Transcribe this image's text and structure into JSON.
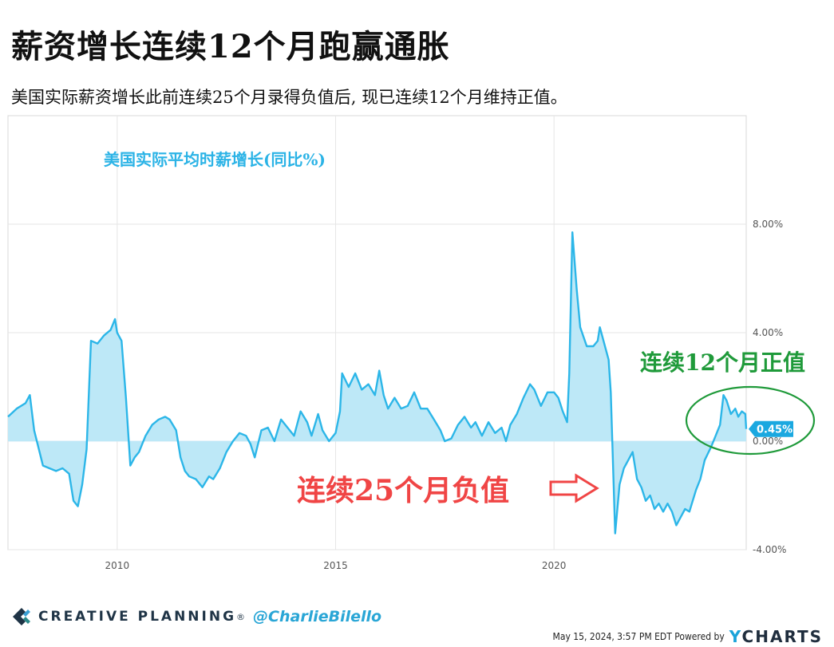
{
  "title": "薪资增长连续12个月跑赢通胀",
  "subtitle": "美国实际薪资增长此前连续25个月录得负值后, 现已连续12个月维持正值。",
  "chart_data": {
    "type": "area",
    "series_label": "美国实际平均时薪增长(同比%)",
    "x_tick_labels": [
      "2010",
      "2015",
      "2020"
    ],
    "y_tick_labels": [
      "8.00%",
      "4.00%",
      "0.00%",
      "-4.00%"
    ],
    "ylim": [
      -4,
      12
    ],
    "xlim": [
      2007.5,
      2024.4
    ],
    "current_value_label": "0.45%",
    "annotation_negative": "连续25个月负值",
    "annotation_positive": "连续12个月正值",
    "points": [
      [
        2007.5,
        0.9
      ],
      [
        2007.7,
        1.2
      ],
      [
        2007.9,
        1.4
      ],
      [
        2008.0,
        1.7
      ],
      [
        2008.1,
        0.4
      ],
      [
        2008.3,
        -0.9
      ],
      [
        2008.45,
        -1.0
      ],
      [
        2008.6,
        -1.1
      ],
      [
        2008.75,
        -1.0
      ],
      [
        2008.9,
        -1.2
      ],
      [
        2009.0,
        -2.2
      ],
      [
        2009.1,
        -2.4
      ],
      [
        2009.2,
        -1.6
      ],
      [
        2009.3,
        -0.3
      ],
      [
        2009.4,
        3.7
      ],
      [
        2009.55,
        3.6
      ],
      [
        2009.7,
        3.9
      ],
      [
        2009.85,
        4.1
      ],
      [
        2009.95,
        4.5
      ],
      [
        2010.0,
        4.0
      ],
      [
        2010.1,
        3.7
      ],
      [
        2010.2,
        1.6
      ],
      [
        2010.3,
        -0.9
      ],
      [
        2010.4,
        -0.6
      ],
      [
        2010.5,
        -0.4
      ],
      [
        2010.65,
        0.2
      ],
      [
        2010.8,
        0.6
      ],
      [
        2010.95,
        0.8
      ],
      [
        2011.1,
        0.9
      ],
      [
        2011.2,
        0.8
      ],
      [
        2011.35,
        0.4
      ],
      [
        2011.45,
        -0.6
      ],
      [
        2011.55,
        -1.1
      ],
      [
        2011.65,
        -1.3
      ],
      [
        2011.8,
        -1.4
      ],
      [
        2011.95,
        -1.7
      ],
      [
        2012.1,
        -1.3
      ],
      [
        2012.2,
        -1.4
      ],
      [
        2012.35,
        -1.0
      ],
      [
        2012.5,
        -0.4
      ],
      [
        2012.65,
        0.0
      ],
      [
        2012.8,
        0.3
      ],
      [
        2012.95,
        0.2
      ],
      [
        2013.05,
        -0.1
      ],
      [
        2013.15,
        -0.6
      ],
      [
        2013.3,
        0.4
      ],
      [
        2013.45,
        0.5
      ],
      [
        2013.6,
        0.0
      ],
      [
        2013.75,
        0.8
      ],
      [
        2013.9,
        0.5
      ],
      [
        2014.05,
        0.2
      ],
      [
        2014.2,
        1.1
      ],
      [
        2014.35,
        0.7
      ],
      [
        2014.45,
        0.2
      ],
      [
        2014.6,
        1.0
      ],
      [
        2014.7,
        0.4
      ],
      [
        2014.85,
        0.0
      ],
      [
        2015.0,
        0.3
      ],
      [
        2015.1,
        1.1
      ],
      [
        2015.15,
        2.5
      ],
      [
        2015.3,
        2.0
      ],
      [
        2015.45,
        2.5
      ],
      [
        2015.6,
        1.9
      ],
      [
        2015.75,
        2.1
      ],
      [
        2015.9,
        1.7
      ],
      [
        2016.0,
        2.6
      ],
      [
        2016.1,
        1.7
      ],
      [
        2016.2,
        1.2
      ],
      [
        2016.35,
        1.6
      ],
      [
        2016.5,
        1.2
      ],
      [
        2016.65,
        1.3
      ],
      [
        2016.8,
        1.8
      ],
      [
        2016.95,
        1.2
      ],
      [
        2017.1,
        1.2
      ],
      [
        2017.25,
        0.8
      ],
      [
        2017.4,
        0.4
      ],
      [
        2017.5,
        0.0
      ],
      [
        2017.65,
        0.1
      ],
      [
        2017.8,
        0.6
      ],
      [
        2017.95,
        0.9
      ],
      [
        2018.1,
        0.5
      ],
      [
        2018.2,
        0.7
      ],
      [
        2018.35,
        0.2
      ],
      [
        2018.5,
        0.7
      ],
      [
        2018.65,
        0.3
      ],
      [
        2018.8,
        0.5
      ],
      [
        2018.9,
        0.0
      ],
      [
        2019.0,
        0.6
      ],
      [
        2019.15,
        1.0
      ],
      [
        2019.3,
        1.6
      ],
      [
        2019.45,
        2.1
      ],
      [
        2019.55,
        1.9
      ],
      [
        2019.7,
        1.3
      ],
      [
        2019.85,
        1.8
      ],
      [
        2020.0,
        1.8
      ],
      [
        2020.1,
        1.6
      ],
      [
        2020.2,
        1.1
      ],
      [
        2020.3,
        0.7
      ],
      [
        2020.35,
        2.5
      ],
      [
        2020.42,
        7.7
      ],
      [
        2020.52,
        5.6
      ],
      [
        2020.6,
        4.2
      ],
      [
        2020.75,
        3.5
      ],
      [
        2020.9,
        3.5
      ],
      [
        2021.0,
        3.7
      ],
      [
        2021.05,
        4.2
      ],
      [
        2021.15,
        3.6
      ],
      [
        2021.25,
        3.0
      ],
      [
        2021.3,
        1.8
      ],
      [
        2021.4,
        -3.4
      ],
      [
        2021.5,
        -1.6
      ],
      [
        2021.6,
        -1.0
      ],
      [
        2021.7,
        -0.7
      ],
      [
        2021.8,
        -0.4
      ],
      [
        2021.9,
        -1.4
      ],
      [
        2022.0,
        -1.7
      ],
      [
        2022.1,
        -2.2
      ],
      [
        2022.2,
        -2.0
      ],
      [
        2022.3,
        -2.5
      ],
      [
        2022.4,
        -2.3
      ],
      [
        2022.5,
        -2.6
      ],
      [
        2022.6,
        -2.3
      ],
      [
        2022.7,
        -2.6
      ],
      [
        2022.8,
        -3.1
      ],
      [
        2022.9,
        -2.8
      ],
      [
        2023.0,
        -2.5
      ],
      [
        2023.1,
        -2.6
      ],
      [
        2023.25,
        -1.8
      ],
      [
        2023.35,
        -1.4
      ],
      [
        2023.45,
        -0.7
      ],
      [
        2023.6,
        -0.2
      ],
      [
        2023.7,
        0.2
      ],
      [
        2023.8,
        0.6
      ],
      [
        2023.88,
        1.7
      ],
      [
        2023.95,
        1.5
      ],
      [
        2024.05,
        1.0
      ],
      [
        2024.15,
        1.2
      ],
      [
        2024.22,
        0.9
      ],
      [
        2024.3,
        1.1
      ],
      [
        2024.38,
        1.0
      ],
      [
        2024.4,
        0.45
      ]
    ]
  },
  "footer": {
    "brand_name": "CREATIVE PLANNING",
    "brand_mark": "®",
    "handle": "@CharlieBilello",
    "timestamp": "May 15, 2024, 3:57 PM EDT Powered by",
    "ycharts_y": "Y",
    "ycharts_rest": "CHARTS"
  },
  "colors": {
    "area_fill": "#bde8f7",
    "line": "#2cb6e8",
    "label_blue": "#2bb3e6",
    "annotation_red": "#f04545",
    "annotation_green": "#1f9a3a",
    "grid": "#e6e6e6"
  }
}
